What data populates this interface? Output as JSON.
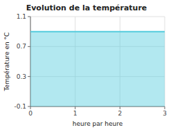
{
  "chart_data": {
    "type": "area",
    "title": "Evolution de la température",
    "x_label": "heure par heure",
    "y_label": "Température en °C",
    "x": [
      0,
      3
    ],
    "series": [
      {
        "color": "#55ccdd",
        "values": [
          0.9,
          0.9
        ]
      }
    ],
    "xlim": [
      0,
      3
    ],
    "ylim": [
      -0.1,
      1.1
    ],
    "xticks": [
      0,
      1,
      2,
      3
    ],
    "yticks": [
      -0.1,
      0.3,
      0.7,
      1.1
    ],
    "grid": true
  }
}
